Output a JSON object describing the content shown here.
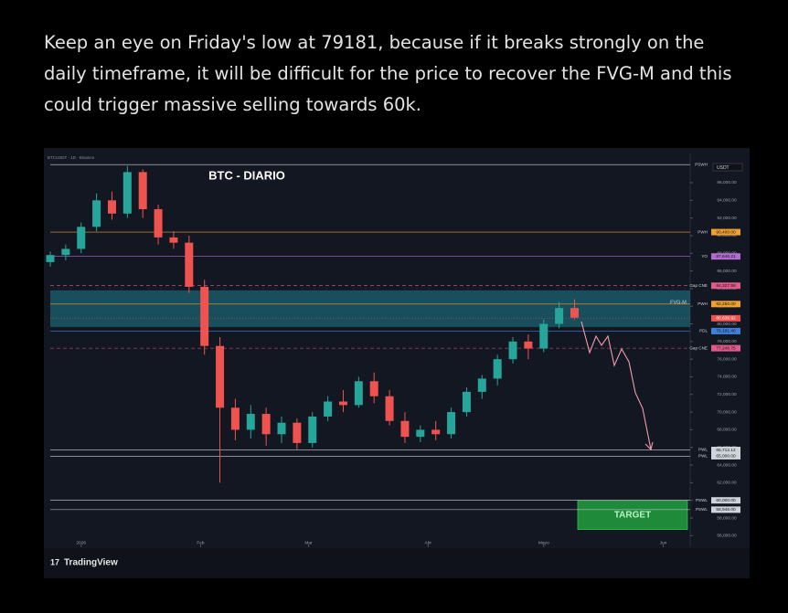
{
  "post": {
    "lines": [
      "Keep an eye on Friday's low at 79181, because if it breaks strongly on the",
      "daily timeframe, it will be difficult for the price to recover the FVG-M and this",
      "could trigger massive selling towards 60k."
    ]
  },
  "chart_data": {
    "type": "candlestick",
    "title": "BTC - DIARIO",
    "symbol": "BTCUSDT · 1D · Binance",
    "currency": "USDT",
    "brand": "TradingView",
    "categories": [
      null,
      null,
      null,
      null,
      null,
      null,
      null,
      null,
      null,
      null,
      null,
      null,
      null,
      null,
      null,
      null,
      null,
      null,
      null,
      null,
      null,
      null,
      null,
      null,
      null,
      null,
      null,
      null,
      null,
      null,
      null,
      null,
      null,
      null,
      null
    ],
    "open": [
      87000,
      87800,
      88500,
      91000,
      94000,
      92500,
      97200,
      93000,
      89800,
      89200,
      84200,
      77500,
      70500,
      68000,
      69800,
      67500,
      68800,
      66500,
      69500,
      71200,
      70800,
      73500,
      71800,
      69000,
      67200,
      68000,
      67500,
      70000,
      72300,
      73800,
      76000,
      78000,
      77200,
      80000,
      81800
    ],
    "high": [
      88200,
      89000,
      91500,
      94800,
      95000,
      97900,
      97500,
      93500,
      90500,
      90000,
      85000,
      78500,
      71500,
      70800,
      70500,
      69500,
      69300,
      70000,
      71800,
      72500,
      74000,
      74500,
      72500,
      70000,
      68500,
      69000,
      70500,
      72800,
      74200,
      76500,
      78500,
      78800,
      80500,
      82500,
      82800
    ],
    "low": [
      86500,
      87200,
      88000,
      90500,
      91800,
      92000,
      92000,
      89000,
      88500,
      83500,
      76500,
      62000,
      66800,
      67000,
      66200,
      66500,
      65800,
      66000,
      69000,
      70000,
      70500,
      71000,
      68500,
      66500,
      66600,
      66800,
      67000,
      69500,
      71500,
      73000,
      75500,
      76000,
      76800,
      79500,
      80500
    ],
    "close": [
      87800,
      88500,
      91000,
      94000,
      92500,
      97200,
      93000,
      89800,
      89200,
      84200,
      77500,
      70500,
      68000,
      69800,
      67500,
      68800,
      66500,
      69500,
      71200,
      70800,
      73500,
      71800,
      69000,
      67200,
      68000,
      67500,
      70000,
      72300,
      73800,
      76000,
      78000,
      77200,
      80000,
      81800,
      80700
    ],
    "up_color": "#26a69a",
    "down_color": "#ef5350",
    "xlim": [
      0,
      41.5
    ],
    "xticks": [
      {
        "value": 2,
        "label": "2026"
      },
      {
        "value": 9.75,
        "label": "Feb"
      },
      {
        "value": 16.75,
        "label": "Mar"
      },
      {
        "value": 24.5,
        "label": "Abr"
      },
      {
        "value": 32,
        "label": "Mayo"
      },
      {
        "value": 39.75,
        "label": "Jun"
      }
    ],
    "ylim": [
      55000,
      99000
    ],
    "yticks": [
      {
        "value": 56000,
        "label": "56,000.00"
      },
      {
        "value": 58000,
        "label": "58,000.00"
      },
      {
        "value": 60000,
        "label": "60,000.00"
      },
      {
        "value": 62000,
        "label": "62,000.00"
      },
      {
        "value": 64000,
        "label": "64,000.00"
      },
      {
        "value": 66000,
        "label": "66,000.00"
      },
      {
        "value": 68000,
        "label": "68,000.00"
      },
      {
        "value": 70000,
        "label": "70,000.00"
      },
      {
        "value": 72000,
        "label": "72,000.00"
      },
      {
        "value": 74000,
        "label": "74,000.00"
      },
      {
        "value": 76000,
        "label": "76,000.00"
      },
      {
        "value": 78000,
        "label": "78,000.00"
      },
      {
        "value": 80000,
        "label": "80,000.00"
      },
      {
        "value": 82000,
        "label": "82,000.00"
      },
      {
        "value": 84000,
        "label": "84,000.00"
      },
      {
        "value": 86000,
        "label": "86,000.00"
      },
      {
        "value": 88000,
        "label": "88,000.00"
      },
      {
        "value": 90000,
        "label": "90,000.00"
      },
      {
        "value": 92000,
        "label": "92,000.00"
      },
      {
        "value": 94000,
        "label": "94,000.00"
      },
      {
        "value": 96000,
        "label": "96,000.00"
      }
    ],
    "grid": false,
    "levels": [
      {
        "name": "PSWH",
        "value": 98050,
        "color": "#cfd3dc"
      },
      {
        "name": "PWH",
        "value": 90400,
        "label": "90,400.00",
        "color": "#f0a030"
      },
      {
        "name": "YO",
        "value": 87646.21,
        "label": "87,646.21",
        "color": "#b06cd0"
      },
      {
        "name": "Gap CNE",
        "value": 84327.58,
        "label": "84,327.58",
        "color": "#e05a8a",
        "dash": true
      },
      {
        "name": "PWH",
        "value": 82250,
        "label": "82,250.00",
        "color": "#f0a030"
      },
      {
        "name": "PDL",
        "value": 79181.4,
        "label": "79,181.40",
        "color": "#3f7fdc"
      },
      {
        "name": "Gap CNE",
        "value": 77246.75,
        "label": "77,246.75",
        "color": "#e05a8a",
        "dash": true
      },
      {
        "name": "PWL",
        "value": 65712.12,
        "label": "65,712.12",
        "color": "#cfd3dc"
      },
      {
        "name": "PWL",
        "value": 65000,
        "label": "65,000.00",
        "color": "#cfd3dc"
      },
      {
        "name": "PSWL",
        "value": 60000,
        "label": "60,000.00",
        "color": "#cfd3dc"
      },
      {
        "name": "PSWL",
        "value": 58946,
        "label": "58,946.00",
        "color": "#cfd3dc"
      }
    ],
    "last_price": {
      "value": 80636.92,
      "label": "80,636.92",
      "color": "#ef5350"
    },
    "zone": {
      "name": "FVG-M",
      "range": [
        79650,
        83800
      ],
      "color": "#1c6170"
    },
    "target": {
      "label": "TARGET",
      "range": [
        56700,
        60000
      ],
      "color": "#1f8a3a"
    }
  }
}
